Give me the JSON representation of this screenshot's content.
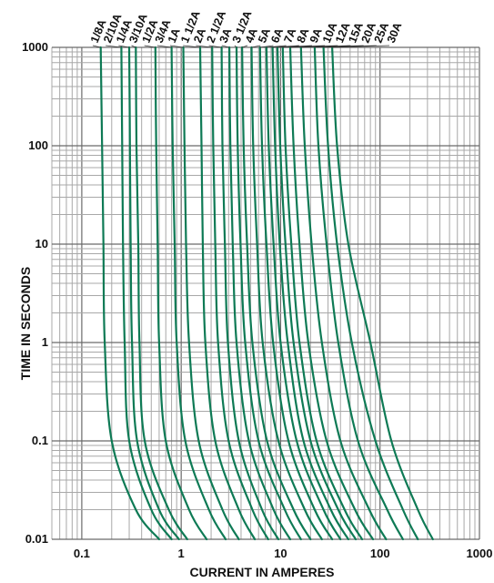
{
  "chart_data": {
    "type": "line",
    "xlabel": "CURRENT IN AMPERES",
    "ylabel": "TIME IN SECONDS",
    "x_scale": "log",
    "y_scale": "log",
    "xlim": [
      0.05,
      1000
    ],
    "ylim": [
      0.01,
      1000
    ],
    "x_ticks": [
      {
        "value": 0.1,
        "label": "0.1"
      },
      {
        "value": 1,
        "label": "1"
      },
      {
        "value": 10,
        "label": "10"
      },
      {
        "value": 100,
        "label": "100"
      },
      {
        "value": 1000,
        "label": "1000"
      }
    ],
    "y_ticks": [
      {
        "value": 0.01,
        "label": "0.01"
      },
      {
        "value": 0.1,
        "label": "0.1"
      },
      {
        "value": 1,
        "label": "1"
      },
      {
        "value": 10,
        "label": "10"
      },
      {
        "value": 100,
        "label": "100"
      },
      {
        "value": 1000,
        "label": "1000"
      }
    ],
    "grid": true,
    "line_color": "#0e7a55",
    "series": [
      {
        "name": "1/8A",
        "points": [
          [
            0.155,
            1000
          ],
          [
            0.16,
            100
          ],
          [
            0.165,
            10
          ],
          [
            0.17,
            1
          ],
          [
            0.2,
            0.1
          ],
          [
            0.35,
            0.02
          ],
          [
            0.6,
            0.01
          ]
        ]
      },
      {
        "name": "2/10A",
        "points": [
          [
            0.25,
            1000
          ],
          [
            0.255,
            100
          ],
          [
            0.26,
            10
          ],
          [
            0.27,
            1
          ],
          [
            0.3,
            0.1
          ],
          [
            0.5,
            0.02
          ],
          [
            0.8,
            0.01
          ]
        ]
      },
      {
        "name": "1/4A",
        "points": [
          [
            0.3,
            1000
          ],
          [
            0.305,
            100
          ],
          [
            0.31,
            10
          ],
          [
            0.32,
            1
          ],
          [
            0.36,
            0.1
          ],
          [
            0.6,
            0.02
          ],
          [
            0.95,
            0.01
          ]
        ]
      },
      {
        "name": "3/10A",
        "points": [
          [
            0.35,
            1000
          ],
          [
            0.355,
            100
          ],
          [
            0.37,
            10
          ],
          [
            0.38,
            1
          ],
          [
            0.43,
            0.1
          ],
          [
            0.75,
            0.02
          ],
          [
            1.15,
            0.01
          ]
        ]
      },
      {
        "name": "1/2A",
        "points": [
          [
            0.55,
            1000
          ],
          [
            0.56,
            100
          ],
          [
            0.58,
            10
          ],
          [
            0.6,
            1
          ],
          [
            0.7,
            0.1
          ],
          [
            1.2,
            0.02
          ],
          [
            1.8,
            0.01
          ]
        ]
      },
      {
        "name": "3/4A",
        "points": [
          [
            0.8,
            1000
          ],
          [
            0.82,
            100
          ],
          [
            0.86,
            10
          ],
          [
            0.9,
            1
          ],
          [
            1.1,
            0.1
          ],
          [
            1.9,
            0.02
          ],
          [
            2.8,
            0.01
          ]
        ]
      },
      {
        "name": "1A",
        "points": [
          [
            1.05,
            1000
          ],
          [
            1.08,
            100
          ],
          [
            1.12,
            10
          ],
          [
            1.2,
            1
          ],
          [
            1.5,
            0.1
          ],
          [
            2.6,
            0.02
          ],
          [
            3.8,
            0.01
          ]
        ]
      },
      {
        "name": "1 1/2A",
        "points": [
          [
            1.55,
            1000
          ],
          [
            1.6,
            100
          ],
          [
            1.65,
            10
          ],
          [
            1.75,
            1
          ],
          [
            2.2,
            0.1
          ],
          [
            3.8,
            0.02
          ],
          [
            5.5,
            0.01
          ]
        ]
      },
      {
        "name": "2A",
        "points": [
          [
            2.05,
            1000
          ],
          [
            2.1,
            100
          ],
          [
            2.2,
            10
          ],
          [
            2.35,
            1
          ],
          [
            3,
            0.1
          ],
          [
            5.2,
            0.02
          ],
          [
            7.5,
            0.01
          ]
        ]
      },
      {
        "name": "2 1/2A",
        "points": [
          [
            2.55,
            1000
          ],
          [
            2.6,
            100
          ],
          [
            2.75,
            10
          ],
          [
            2.95,
            1
          ],
          [
            3.8,
            0.1
          ],
          [
            6.5,
            0.02
          ],
          [
            9.5,
            0.01
          ]
        ]
      },
      {
        "name": "3A",
        "points": [
          [
            3.05,
            1000
          ],
          [
            3.12,
            100
          ],
          [
            3.3,
            10
          ],
          [
            3.6,
            1
          ],
          [
            4.8,
            0.1
          ],
          [
            8.5,
            0.02
          ],
          [
            12.5,
            0.01
          ]
        ]
      },
      {
        "name": "3 1/2A",
        "points": [
          [
            3.6,
            1000
          ],
          [
            3.7,
            100
          ],
          [
            3.95,
            10
          ],
          [
            4.4,
            1
          ],
          [
            6,
            0.1
          ],
          [
            11,
            0.02
          ],
          [
            16,
            0.01
          ]
        ]
      },
      {
        "name": "4A",
        "points": [
          [
            4.1,
            1000
          ],
          [
            4.25,
            100
          ],
          [
            4.6,
            10
          ],
          [
            5.2,
            1
          ],
          [
            7.3,
            0.1
          ],
          [
            13.5,
            0.02
          ],
          [
            20,
            0.01
          ]
        ]
      },
      {
        "name": "5A",
        "points": [
          [
            5.1,
            1000
          ],
          [
            5.3,
            100
          ],
          [
            5.8,
            10
          ],
          [
            6.6,
            1
          ],
          [
            9.5,
            0.1
          ],
          [
            17.5,
            0.02
          ],
          [
            26,
            0.01
          ]
        ]
      },
      {
        "name": "6A",
        "points": [
          [
            6.2,
            1000
          ],
          [
            6.5,
            100
          ],
          [
            7.2,
            10
          ],
          [
            8.4,
            1
          ],
          [
            12,
            0.1
          ],
          [
            22,
            0.02
          ],
          [
            33,
            0.01
          ]
        ]
      },
      {
        "name": "7A",
        "points": [
          [
            7.2,
            1000
          ],
          [
            7.6,
            100
          ],
          [
            8.5,
            10
          ],
          [
            10,
            1
          ],
          [
            14.5,
            0.1
          ],
          [
            27,
            0.02
          ],
          [
            40,
            0.01
          ]
        ]
      },
      {
        "name": "8A",
        "points": [
          [
            8.3,
            1000
          ],
          [
            8.8,
            100
          ],
          [
            9.8,
            10
          ],
          [
            11.8,
            1
          ],
          [
            17,
            0.1
          ],
          [
            32,
            0.02
          ],
          [
            48,
            0.01
          ]
        ]
      },
      {
        "name": "9A",
        "points": [
          [
            9.3,
            1000
          ],
          [
            9.9,
            100
          ],
          [
            11.2,
            10
          ],
          [
            13.5,
            1
          ],
          [
            20,
            0.1
          ],
          [
            38,
            0.02
          ],
          [
            57,
            0.01
          ]
        ]
      },
      {
        "name": "10A",
        "points": [
          [
            10.5,
            1000
          ],
          [
            11.2,
            100
          ],
          [
            12.8,
            10
          ],
          [
            15.5,
            1
          ],
          [
            23,
            0.1
          ],
          [
            44,
            0.02
          ],
          [
            66,
            0.01
          ]
        ]
      },
      {
        "name": "12A",
        "points": [
          [
            12.5,
            1000
          ],
          [
            13.5,
            100
          ],
          [
            15.5,
            10
          ],
          [
            19,
            1
          ],
          [
            29,
            0.1
          ],
          [
            56,
            0.02
          ],
          [
            85,
            0.01
          ]
        ]
      },
      {
        "name": "15A",
        "points": [
          [
            16,
            1000
          ],
          [
            17.5,
            100
          ],
          [
            20.5,
            10
          ],
          [
            26,
            1
          ],
          [
            40,
            0.1
          ],
          [
            78,
            0.02
          ],
          [
            115,
            0.01
          ]
        ]
      },
      {
        "name": "20A",
        "points": [
          [
            22,
            1000
          ],
          [
            24,
            100
          ],
          [
            29,
            10
          ],
          [
            38,
            1
          ],
          [
            60,
            0.1
          ],
          [
            118,
            0.02
          ],
          [
            170,
            0.01
          ]
        ]
      },
      {
        "name": "25A",
        "points": [
          [
            27,
            1000
          ],
          [
            30,
            100
          ],
          [
            37,
            10
          ],
          [
            52,
            1
          ],
          [
            90,
            0.1
          ],
          [
            170,
            0.02
          ],
          [
            240,
            0.01
          ]
        ]
      },
      {
        "name": "30A",
        "points": [
          [
            33,
            1000
          ],
          [
            37,
            100
          ],
          [
            48,
            10
          ],
          [
            80,
            1
          ],
          [
            130,
            0.1
          ],
          [
            240,
            0.02
          ],
          [
            340,
            0.01
          ]
        ]
      }
    ]
  }
}
